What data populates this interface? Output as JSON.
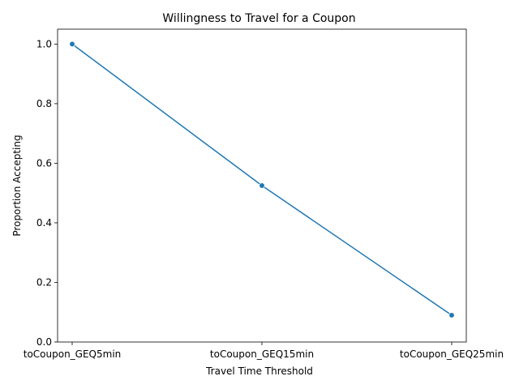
{
  "chart_data": {
    "type": "line",
    "title": "Willingness to Travel for a Coupon",
    "xlabel": "Travel Time Threshold",
    "ylabel": "Proportion Accepting",
    "categories": [
      "toCoupon_GEQ5min",
      "toCoupon_GEQ15min",
      "toCoupon_GEQ25min"
    ],
    "series": [
      {
        "values": [
          1.0,
          0.525,
          0.09
        ],
        "color": "#1f77b4",
        "marker": "circle"
      }
    ],
    "ylim": [
      0,
      1.05
    ],
    "yticks": [
      "0.0",
      "0.2",
      "0.4",
      "0.6",
      "0.8",
      "1.0"
    ],
    "grid": false,
    "legend": "none"
  }
}
